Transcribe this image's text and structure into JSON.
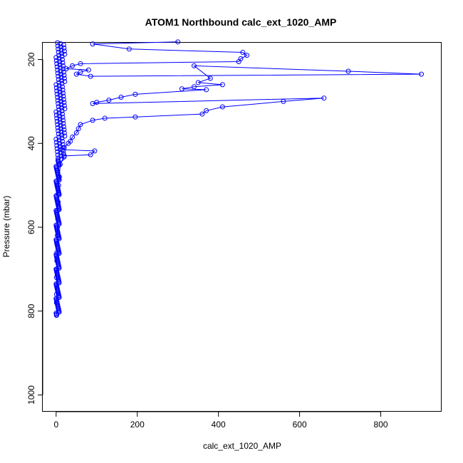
{
  "chart_data": {
    "type": "line",
    "title": "ATOM1 Northbound calc_ext_1020_AMP",
    "xlabel": "calc_ext_1020_AMP",
    "ylabel": "Pressure (mbar)",
    "xlim": [
      -33,
      950
    ],
    "ylim": [
      1040,
      160
    ],
    "y_reversed": true,
    "x_ticks": [
      0,
      200,
      400,
      600,
      800
    ],
    "y_ticks": [
      200,
      400,
      600,
      800,
      1000
    ],
    "grid": false,
    "legend": "none",
    "marker": "open-circle",
    "series": [
      {
        "color": "#0000FF",
        "x": [
          300,
          90,
          180,
          460,
          470,
          455,
          450,
          60,
          40,
          25,
          80,
          60,
          50,
          85,
          900,
          720,
          340,
          380,
          350,
          410,
          340,
          310,
          370,
          195,
          160,
          130,
          100,
          90,
          660,
          560,
          410,
          370,
          360,
          195,
          120,
          90,
          60,
          55,
          50,
          40,
          35,
          30,
          20,
          15,
          95,
          85,
          20,
          10,
          8,
          6,
          5,
          5,
          4,
          4,
          3,
          3,
          2,
          2,
          2,
          1,
          1,
          1,
          1,
          1,
          1
        ],
        "y": [
          158,
          163,
          175,
          183,
          190,
          198,
          205,
          210,
          215,
          222,
          225,
          230,
          235,
          240,
          235,
          228,
          215,
          245,
          255,
          260,
          265,
          270,
          272,
          283,
          290,
          297,
          302,
          305,
          292,
          300,
          313,
          322,
          330,
          337,
          340,
          345,
          355,
          365,
          375,
          385,
          395,
          400,
          410,
          415,
          418,
          427,
          430,
          450,
          480,
          500,
          520,
          540,
          560,
          580,
          600,
          620,
          640,
          660,
          680,
          700,
          720,
          740,
          760,
          780,
          810
        ]
      }
    ]
  }
}
